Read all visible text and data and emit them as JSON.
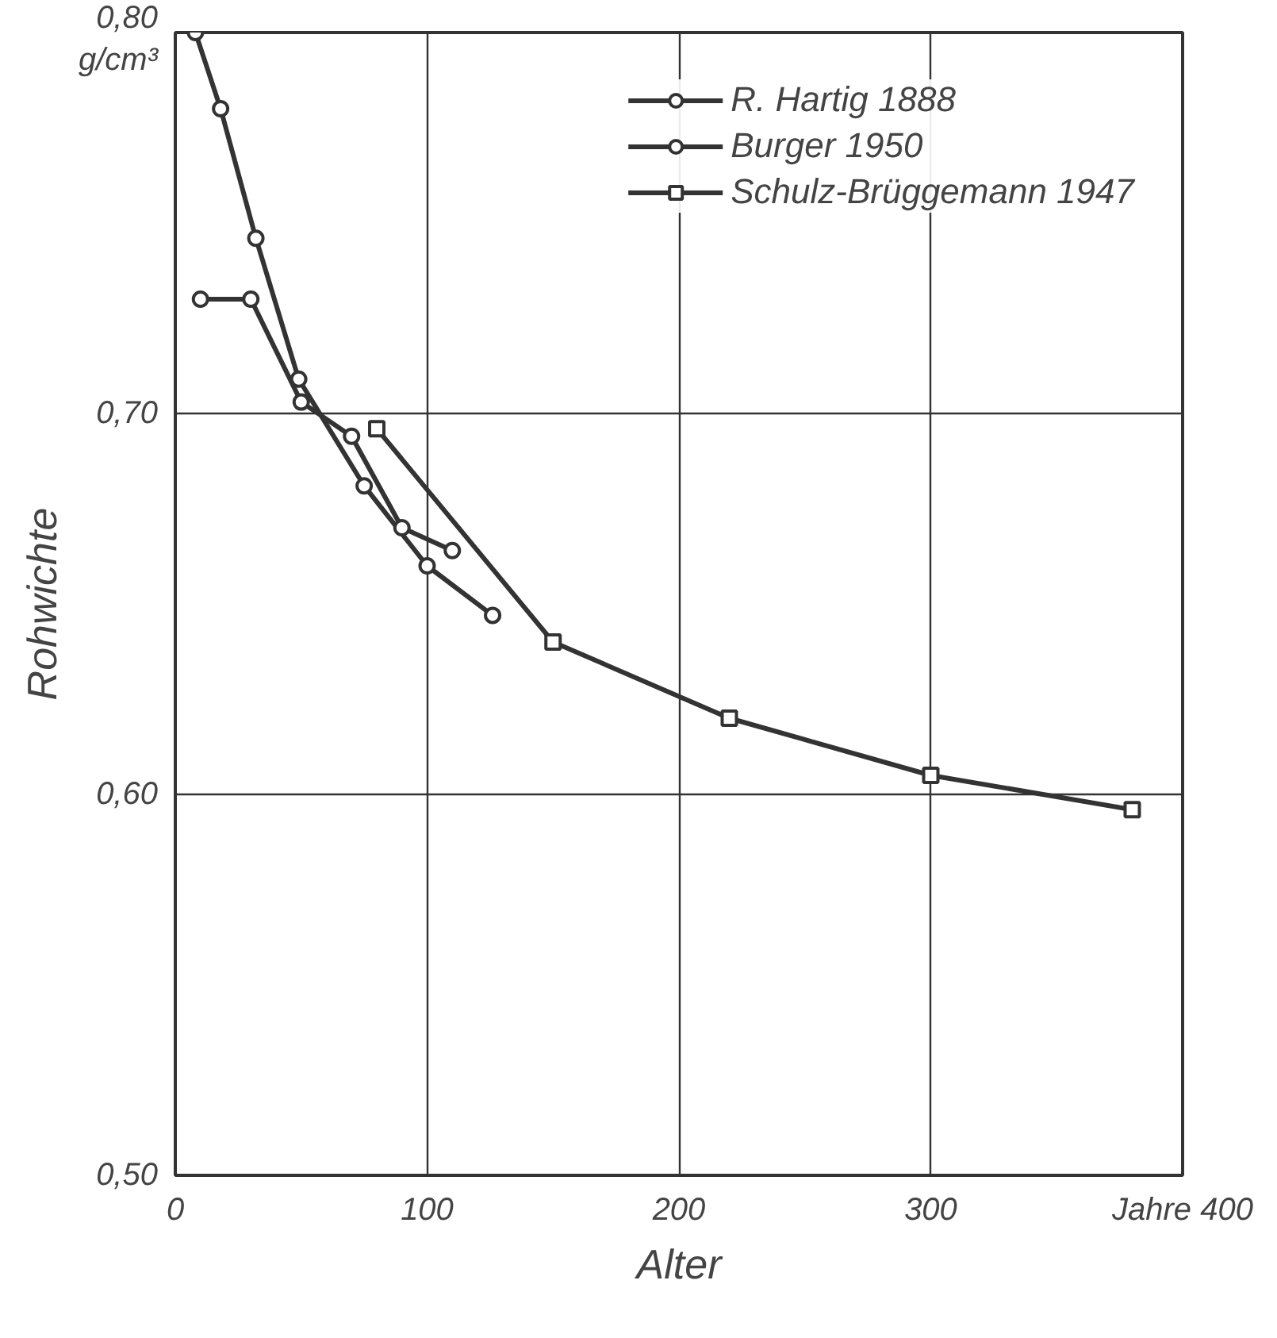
{
  "chart_data": {
    "type": "line",
    "xlabel": "Alter",
    "ylabel": "Rohwichte",
    "xlim": [
      0,
      400
    ],
    "ylim": [
      0.5,
      0.8
    ],
    "xticks": [
      0,
      100,
      200,
      300,
      {
        "value": 400,
        "label": "Jahre 400"
      }
    ],
    "yticks": [
      {
        "value": 0.5,
        "label": "0,50"
      },
      {
        "value": 0.6,
        "label": "0,60"
      },
      {
        "value": 0.7,
        "label": "0,70"
      },
      {
        "value": 0.8,
        "label": "0,80\ng/cm³"
      }
    ],
    "grid": true,
    "legend": "top right",
    "line_style": "solid",
    "series": [
      {
        "name": "R. Hartig 1888",
        "color": "#333333",
        "marker": "circle",
        "x": [
          8,
          18,
          32,
          49,
          75,
          100,
          126
        ],
        "values": [
          0.8,
          0.78,
          0.746,
          0.709,
          0.681,
          0.66,
          0.647
        ]
      },
      {
        "name": "Burger 1950",
        "color": "#333333",
        "marker": "circle",
        "x": [
          10,
          30,
          50,
          70,
          90,
          110
        ],
        "values": [
          0.73,
          0.73,
          0.703,
          0.694,
          0.67,
          0.664
        ]
      },
      {
        "name": "Schulz-Brüggemann 1947",
        "color": "#333333",
        "marker": "square",
        "x": [
          80,
          150,
          220,
          300,
          380
        ],
        "values": [
          0.696,
          0.64,
          0.62,
          0.605,
          0.596
        ]
      }
    ]
  }
}
